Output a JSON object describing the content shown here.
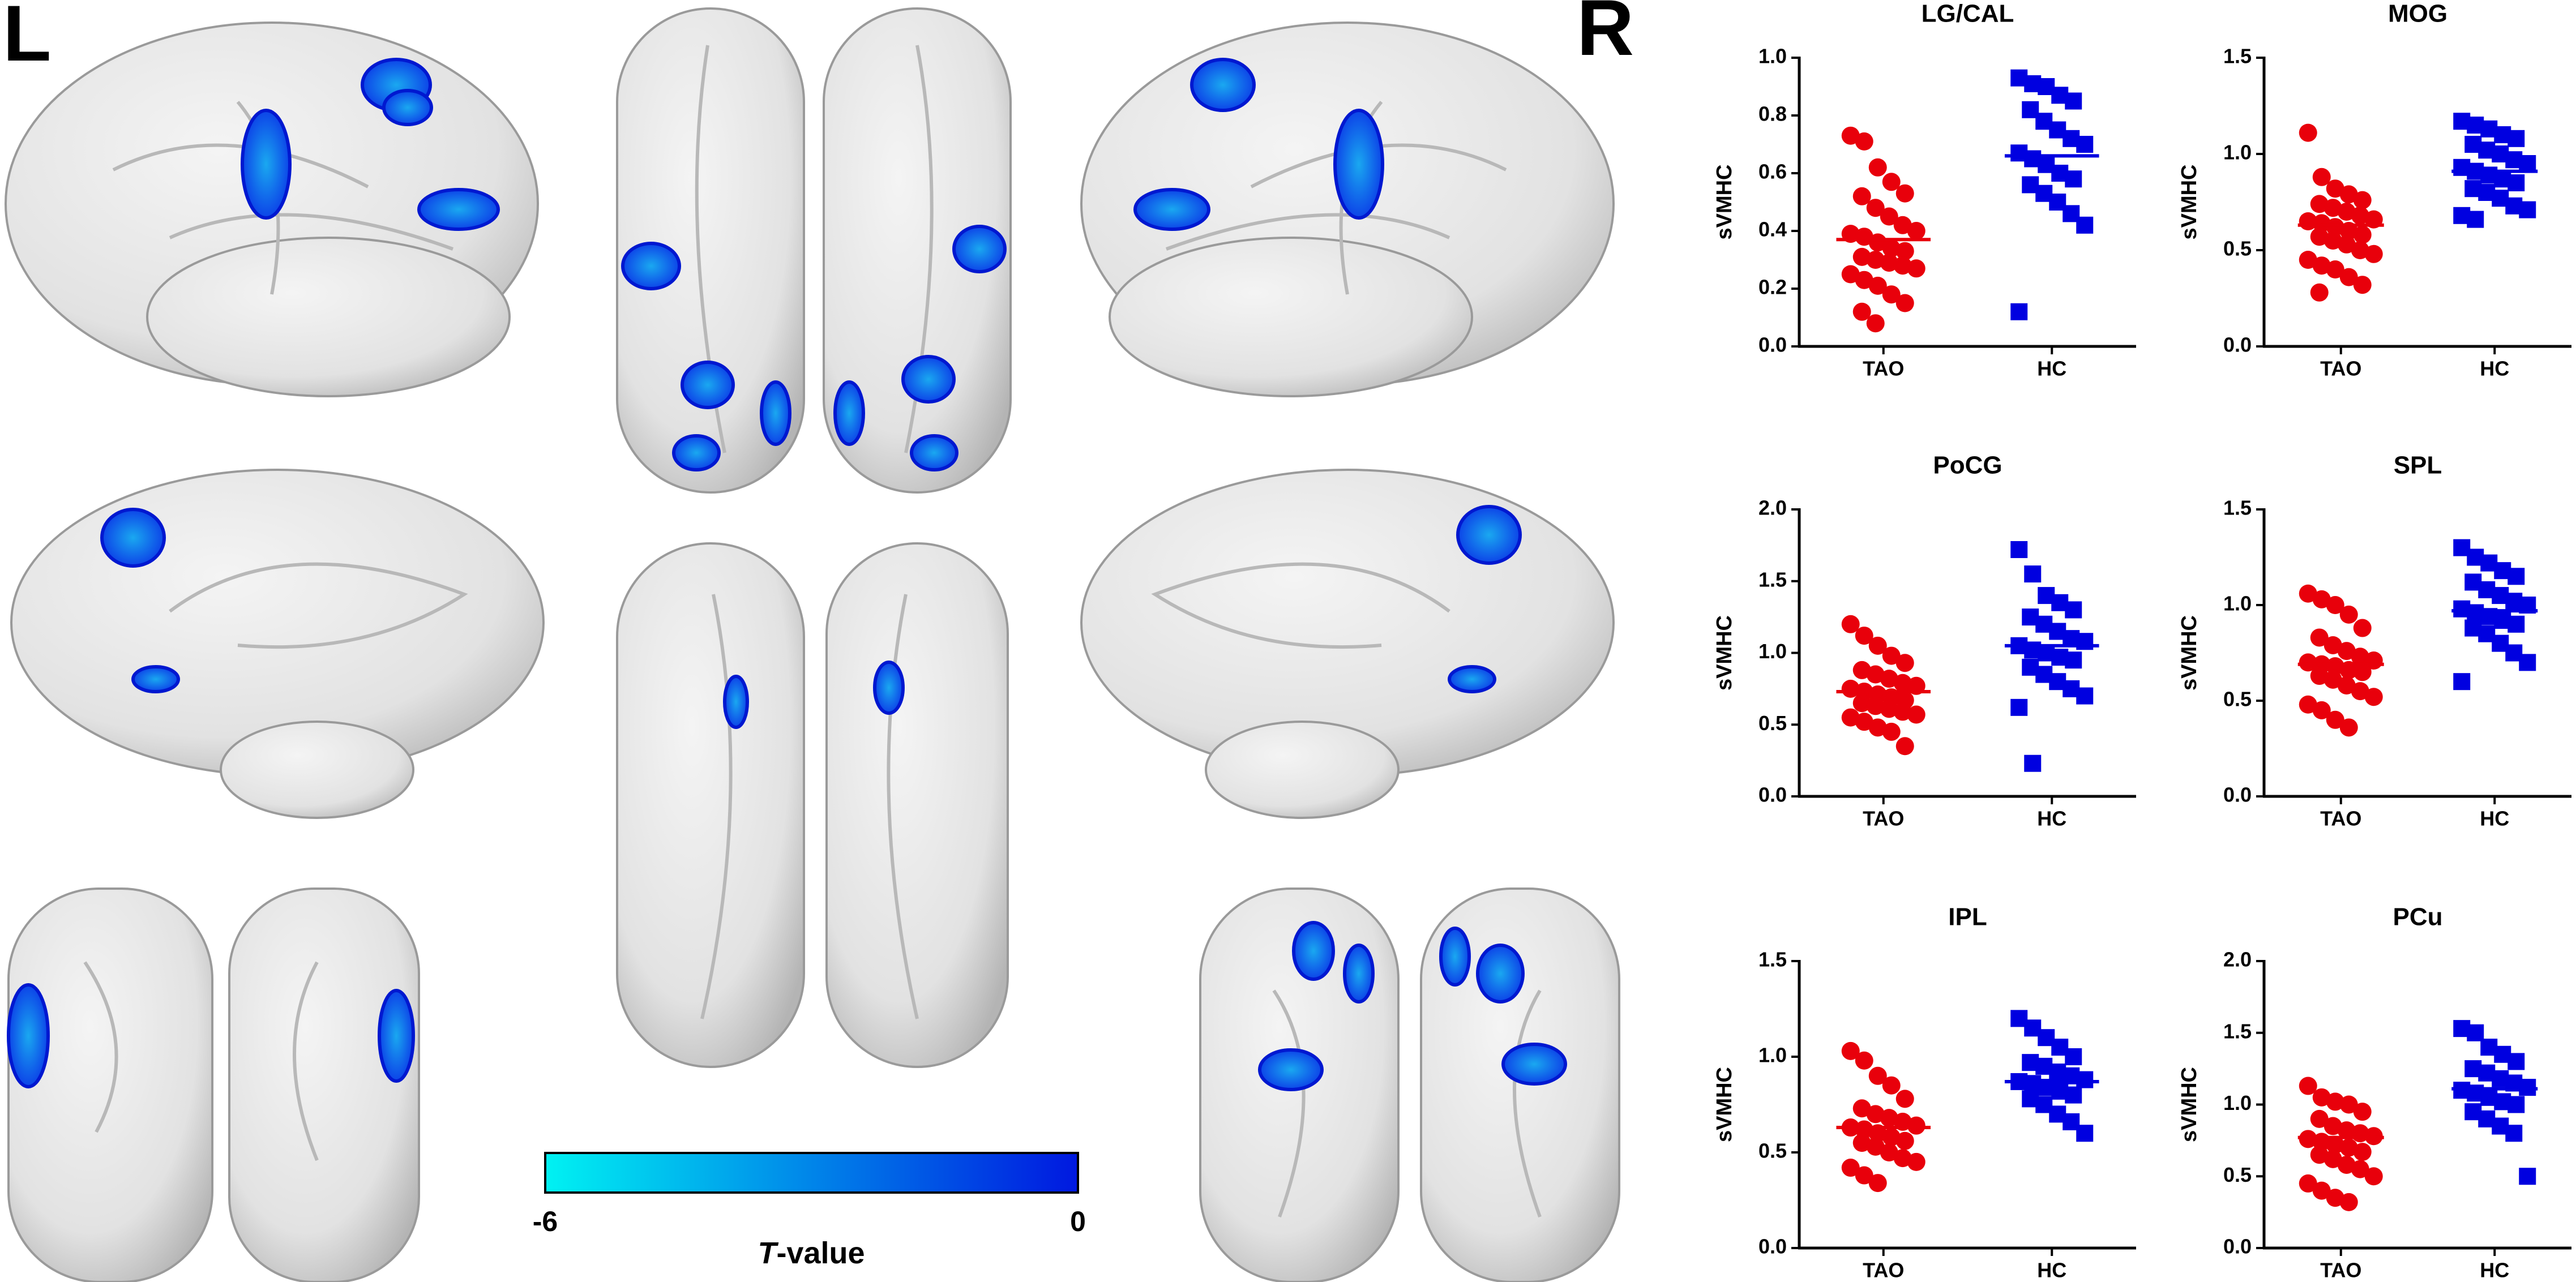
{
  "labels": {
    "left": "L",
    "right": "R"
  },
  "colorbar": {
    "ticks": [
      -6,
      0
    ],
    "title": [
      "T",
      "-value"
    ],
    "colors": [
      "#00f2f2",
      "#0018e0"
    ]
  },
  "chart_data": [
    {
      "type": "strip",
      "title": "LG/CAL",
      "ylabel": "sVMHC",
      "categories": [
        "TAO",
        "HC"
      ],
      "ylim": [
        0,
        1
      ],
      "yticks": [
        {
          "value": 0,
          "label": "0.0"
        },
        0.2,
        0.4,
        0.6,
        0.8,
        {
          "value": 1,
          "label": "1.0"
        }
      ],
      "series": [
        {
          "color": "#e8000b",
          "marker": "circle",
          "mean": 0.37,
          "values": [
            0.73,
            0.71,
            0.62,
            0.57,
            0.53,
            0.52,
            0.48,
            0.45,
            0.42,
            0.4,
            0.39,
            0.38,
            0.36,
            0.34,
            0.33,
            0.31,
            0.3,
            0.29,
            0.28,
            0.27,
            0.25,
            0.23,
            0.21,
            0.18,
            0.15,
            0.12,
            0.08
          ]
        },
        {
          "color": "#0000e0",
          "marker": "square",
          "mean": 0.66,
          "values": [
            0.93,
            0.91,
            0.9,
            0.87,
            0.85,
            0.82,
            0.78,
            0.75,
            0.72,
            0.7,
            0.67,
            0.65,
            0.63,
            0.6,
            0.58,
            0.56,
            0.53,
            0.5,
            0.46,
            0.42,
            0.12
          ]
        }
      ]
    },
    {
      "type": "strip",
      "title": "MOG",
      "ylabel": "sVMHC",
      "categories": [
        "TAO",
        "HC"
      ],
      "ylim": [
        0,
        1.5
      ],
      "yticks": [
        {
          "value": 0,
          "label": "0.0"
        },
        0.5,
        {
          "value": 1,
          "label": "1.0"
        },
        1.5
      ],
      "series": [
        {
          "color": "#e8000b",
          "marker": "circle",
          "mean": 0.63,
          "values": [
            1.11,
            0.88,
            0.82,
            0.79,
            0.76,
            0.74,
            0.72,
            0.7,
            0.68,
            0.66,
            0.65,
            0.64,
            0.62,
            0.6,
            0.58,
            0.57,
            0.55,
            0.53,
            0.5,
            0.48,
            0.45,
            0.42,
            0.4,
            0.36,
            0.32,
            0.28
          ]
        },
        {
          "color": "#0000e0",
          "marker": "square",
          "mean": 0.91,
          "values": [
            1.17,
            1.15,
            1.13,
            1.1,
            1.08,
            1.05,
            1.02,
            1.0,
            0.97,
            0.95,
            0.93,
            0.91,
            0.89,
            0.87,
            0.85,
            0.82,
            0.8,
            0.77,
            0.73,
            0.71,
            0.68,
            0.66
          ]
        }
      ]
    },
    {
      "type": "strip",
      "title": "PoCG",
      "ylabel": "sVMHC",
      "categories": [
        "TAO",
        "HC"
      ],
      "ylim": [
        0,
        2
      ],
      "yticks": [
        {
          "value": 0,
          "label": "0.0"
        },
        0.5,
        {
          "value": 1,
          "label": "1.0"
        },
        1.5,
        {
          "value": 2,
          "label": "2.0"
        }
      ],
      "series": [
        {
          "color": "#e8000b",
          "marker": "circle",
          "mean": 0.73,
          "values": [
            1.2,
            1.12,
            1.05,
            0.98,
            0.93,
            0.88,
            0.85,
            0.82,
            0.79,
            0.77,
            0.75,
            0.73,
            0.71,
            0.69,
            0.67,
            0.65,
            0.63,
            0.61,
            0.59,
            0.57,
            0.55,
            0.52,
            0.48,
            0.45,
            0.35
          ]
        },
        {
          "color": "#0000e0",
          "marker": "square",
          "mean": 1.05,
          "values": [
            1.72,
            1.55,
            1.4,
            1.35,
            1.3,
            1.25,
            1.2,
            1.15,
            1.1,
            1.08,
            1.05,
            1.02,
            1.0,
            0.97,
            0.95,
            0.9,
            0.85,
            0.8,
            0.75,
            0.7,
            0.62,
            0.23
          ]
        }
      ]
    },
    {
      "type": "strip",
      "title": "SPL",
      "ylabel": "sVMHC",
      "categories": [
        "TAO",
        "HC"
      ],
      "ylim": [
        0,
        1.5
      ],
      "yticks": [
        {
          "value": 0,
          "label": "0.0"
        },
        0.5,
        {
          "value": 1,
          "label": "1.0"
        },
        1.5
      ],
      "series": [
        {
          "color": "#e8000b",
          "marker": "circle",
          "mean": 0.69,
          "values": [
            1.06,
            1.03,
            1.0,
            0.95,
            0.88,
            0.83,
            0.79,
            0.76,
            0.73,
            0.71,
            0.7,
            0.69,
            0.68,
            0.66,
            0.65,
            0.63,
            0.61,
            0.58,
            0.55,
            0.52,
            0.48,
            0.45,
            0.4,
            0.36
          ]
        },
        {
          "color": "#0000e0",
          "marker": "square",
          "mean": 0.97,
          "values": [
            1.3,
            1.25,
            1.22,
            1.18,
            1.15,
            1.12,
            1.08,
            1.05,
            1.02,
            1.0,
            0.98,
            0.96,
            0.94,
            0.92,
            0.9,
            0.88,
            0.85,
            0.8,
            0.75,
            0.7,
            0.6
          ]
        }
      ]
    },
    {
      "type": "strip",
      "title": "IPL",
      "ylabel": "sVMHC",
      "categories": [
        "TAO",
        "HC"
      ],
      "ylim": [
        0,
        1.5
      ],
      "yticks": [
        {
          "value": 0,
          "label": "0.0"
        },
        0.5,
        {
          "value": 1,
          "label": "1.0"
        },
        1.5
      ],
      "series": [
        {
          "color": "#e8000b",
          "marker": "circle",
          "mean": 0.63,
          "values": [
            1.03,
            0.98,
            0.9,
            0.85,
            0.78,
            0.73,
            0.7,
            0.68,
            0.66,
            0.64,
            0.63,
            0.62,
            0.6,
            0.58,
            0.56,
            0.55,
            0.53,
            0.5,
            0.47,
            0.45,
            0.42,
            0.38,
            0.34
          ]
        },
        {
          "color": "#0000e0",
          "marker": "square",
          "mean": 0.87,
          "values": [
            1.2,
            1.15,
            1.1,
            1.05,
            1.0,
            0.97,
            0.95,
            0.92,
            0.9,
            0.88,
            0.87,
            0.86,
            0.84,
            0.82,
            0.8,
            0.78,
            0.75,
            0.7,
            0.66,
            0.6
          ]
        }
      ]
    },
    {
      "type": "strip",
      "title": "PCu",
      "ylabel": "sVMHC",
      "categories": [
        "TAO",
        "HC"
      ],
      "ylim": [
        0,
        2
      ],
      "yticks": [
        {
          "value": 0,
          "label": "0.0"
        },
        0.5,
        {
          "value": 1,
          "label": "1.0"
        },
        1.5,
        {
          "value": 2,
          "label": "2.0"
        }
      ],
      "series": [
        {
          "color": "#e8000b",
          "marker": "circle",
          "mean": 0.77,
          "values": [
            1.13,
            1.05,
            1.02,
            1.0,
            0.95,
            0.9,
            0.85,
            0.82,
            0.8,
            0.78,
            0.76,
            0.74,
            0.72,
            0.7,
            0.67,
            0.65,
            0.62,
            0.58,
            0.55,
            0.5,
            0.45,
            0.4,
            0.35,
            0.32
          ]
        },
        {
          "color": "#0000e0",
          "marker": "square",
          "mean": 1.11,
          "values": [
            1.53,
            1.5,
            1.4,
            1.35,
            1.3,
            1.25,
            1.22,
            1.18,
            1.15,
            1.12,
            1.1,
            1.08,
            1.05,
            1.02,
            1.0,
            0.95,
            0.9,
            0.85,
            0.8,
            0.5
          ]
        }
      ]
    }
  ]
}
